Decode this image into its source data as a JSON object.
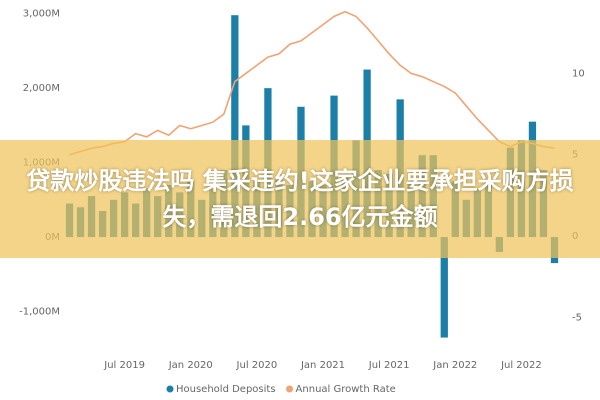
{
  "chart_data": {
    "type": "bar-line",
    "categories": [
      null,
      null,
      null,
      null,
      null,
      "Jul 2019",
      null,
      null,
      null,
      null,
      null,
      "Jan 2020",
      null,
      null,
      null,
      null,
      null,
      "Jul 2020",
      null,
      null,
      null,
      null,
      null,
      "Jan 2021",
      null,
      null,
      null,
      null,
      null,
      "Jul 2021",
      null,
      null,
      null,
      null,
      null,
      "Jan 2022",
      null,
      null,
      null,
      null,
      null,
      "Jul 2022",
      null,
      null,
      null
    ],
    "series": [
      {
        "name": "Household Deposits",
        "color": "#1b7fa8",
        "type": "bar",
        "values": [
          450,
          400,
          550,
          350,
          500,
          600,
          450,
          650,
          550,
          700,
          600,
          750,
          500,
          650,
          900,
          2980,
          1500,
          750,
          2000,
          800,
          700,
          1750,
          750,
          700,
          1900,
          800,
          1300,
          2250,
          900,
          850,
          1850,
          750,
          1100,
          1100,
          -1350,
          750,
          500,
          650,
          750,
          -200,
          1200,
          1300,
          1550,
          900,
          -350
        ]
      },
      {
        "name": "Annual Growth Rate",
        "color": "#f2a374",
        "type": "line",
        "axis": "y2",
        "values": [
          5,
          5.2,
          5.4,
          5.5,
          5.7,
          5.8,
          6.3,
          6.1,
          6.5,
          6.2,
          6.8,
          6.6,
          6.8,
          7,
          7.5,
          9.5,
          10,
          10.5,
          11,
          11.2,
          11.8,
          12,
          12.5,
          13,
          13.5,
          13.8,
          13.5,
          12.8,
          12,
          11.2,
          10.5,
          10,
          9.8,
          9.5,
          9.2,
          8.8,
          8,
          7.2,
          6.5,
          5.8,
          5.5,
          5.8,
          5.7,
          5.5,
          5.4
        ]
      }
    ],
    "ylim": [
      -1450,
      3050
    ],
    "yticks": [
      {
        "value": -1000,
        "label": "-1,000M"
      },
      {
        "value": 0,
        "label": "0M"
      },
      {
        "value": 1000,
        "label": "1,000M"
      },
      {
        "value": 2000,
        "label": "2,000M"
      },
      {
        "value": 3000,
        "label": "3,000M"
      }
    ],
    "y2lim": [
      -6.7,
      13.9
    ],
    "y2ticks": [
      -5,
      0,
      5,
      10
    ],
    "legend": "bottom"
  },
  "headline": "贷款炒股违法吗 集采违约!这家企业要承担采购方损失，需退回2.66亿元金额"
}
